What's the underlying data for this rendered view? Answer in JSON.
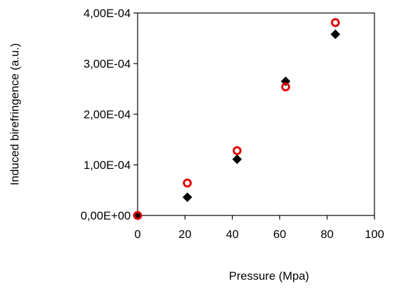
{
  "chart_data": {
    "type": "scatter",
    "title": "",
    "xlabel": "Pressure (Mpa)",
    "ylabel": "Induced birefringence (a.u.)",
    "xlim": [
      0,
      100
    ],
    "ylim": [
      0,
      0.0004
    ],
    "xticks": [
      0,
      20,
      40,
      60,
      80,
      100
    ],
    "xtick_labels": [
      "0",
      "20",
      "40",
      "60",
      "80",
      "100"
    ],
    "yticks": [
      0,
      0.0001,
      0.0002,
      0.0003,
      0.0004
    ],
    "ytick_labels": [
      "0,00E+00",
      "1,00E-04",
      "2,00E-04",
      "3,00E-04",
      "4,00E-04"
    ],
    "grid": false,
    "legend": "none",
    "series": [
      {
        "marker": "diamond",
        "color": "#000000",
        "x": [
          0,
          21,
          42,
          62.5,
          83.5
        ],
        "y": [
          0,
          3.6e-05,
          0.000111,
          0.000265,
          0.000358
        ]
      },
      {
        "marker": "open-circle",
        "color": "#e00000",
        "x": [
          0,
          21,
          42,
          62.5,
          83.5
        ],
        "y": [
          0,
          6.4e-05,
          0.000128,
          0.000254,
          0.000381
        ]
      }
    ]
  }
}
